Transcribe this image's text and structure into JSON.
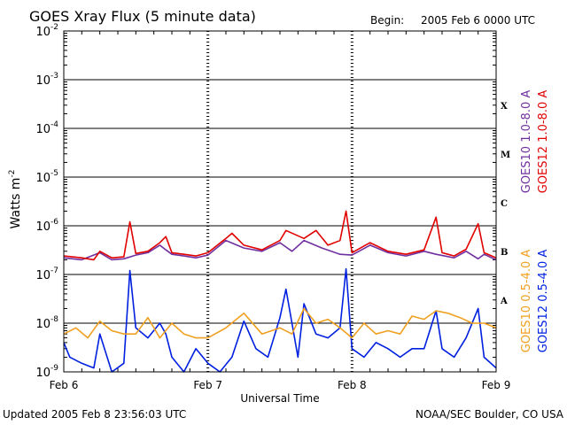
{
  "header": {
    "title": "GOES Xray Flux (5 minute data)",
    "begin_label": "Begin:",
    "begin_value": "2005 Feb 6 0000 UTC"
  },
  "footer": {
    "updated": "Updated 2005 Feb  8 23:56:03 UTC",
    "credit": "NOAA/SEC Boulder, CO USA"
  },
  "colors": {
    "goes10_long": "#7030a0",
    "goes12_long": "#e00000",
    "goes10_short": "#f0a020",
    "goes12_short": "#0020e0"
  },
  "chart_data": {
    "type": "line",
    "title": "GOES Xray Flux (5 minute data)",
    "xlabel": "Universal Time",
    "ylabel": "Watts m",
    "ylabel_sup": "-2",
    "y_scale": "log",
    "ylim": [
      1e-09,
      0.01
    ],
    "xlim": [
      "2005-02-06 00:00",
      "2005-02-09 00:00"
    ],
    "x_ticks": [
      "Feb 6",
      "Feb 7",
      "Feb 8",
      "Feb 9"
    ],
    "y_ticks": [
      {
        "base": "10",
        "exp": "-2",
        "value": 0.01
      },
      {
        "base": "10",
        "exp": "-3",
        "value": 0.001
      },
      {
        "base": "10",
        "exp": "-4",
        "value": 0.0001
      },
      {
        "base": "10",
        "exp": "-5",
        "value": 1e-05
      },
      {
        "base": "10",
        "exp": "-6",
        "value": 1e-06
      },
      {
        "base": "10",
        "exp": "-7",
        "value": 1e-07
      },
      {
        "base": "10",
        "exp": "-8",
        "value": 1e-08
      },
      {
        "base": "10",
        "exp": "-9",
        "value": 1e-09
      }
    ],
    "flare_classes": [
      {
        "label": "X",
        "value": 0.0003
      },
      {
        "label": "M",
        "value": 3e-05
      },
      {
        "label": "C",
        "value": 3e-06
      },
      {
        "label": "B",
        "value": 3e-07
      },
      {
        "label": "A",
        "value": 3e-08
      }
    ],
    "grid": "horizontal",
    "legend_placement": "right",
    "series": [
      {
        "name": "GOES10 1.0-8.0 A",
        "color": "#7030a0",
        "x": [
          "2005-02-06 00:00",
          "2005-02-06 03:00",
          "2005-02-06 06:00",
          "2005-02-06 08:00",
          "2005-02-06 10:00",
          "2005-02-06 12:00",
          "2005-02-06 14:00",
          "2005-02-06 16:00",
          "2005-02-06 17:00",
          "2005-02-06 18:00",
          "2005-02-06 20:00",
          "2005-02-06 22:00",
          "2005-02-07 00:00",
          "2005-02-07 03:00",
          "2005-02-07 06:00",
          "2005-02-07 09:00",
          "2005-02-07 12:00",
          "2005-02-07 14:00",
          "2005-02-07 16:00",
          "2005-02-07 19:00",
          "2005-02-07 22:00",
          "2005-02-08 00:00",
          "2005-02-08 03:00",
          "2005-02-08 06:00",
          "2005-02-08 09:00",
          "2005-02-08 12:00",
          "2005-02-08 14:00",
          "2005-02-08 17:00",
          "2005-02-08 19:00",
          "2005-02-08 21:00",
          "2005-02-08 22:00",
          "2005-02-09 00:00"
        ],
        "y": [
          2.2e-07,
          2e-07,
          2.8e-07,
          2e-07,
          2.1e-07,
          2.5e-07,
          2.8e-07,
          4e-07,
          3.2e-07,
          2.6e-07,
          2.4e-07,
          2.2e-07,
          2.5e-07,
          5e-07,
          3.5e-07,
          3e-07,
          4.5e-07,
          3e-07,
          5e-07,
          3.5e-07,
          2.6e-07,
          2.5e-07,
          4e-07,
          2.8e-07,
          2.4e-07,
          3e-07,
          2.6e-07,
          2.2e-07,
          3e-07,
          2.1e-07,
          2.6e-07,
          2e-07
        ]
      },
      {
        "name": "GOES12 1.0-8.0 A",
        "color": "#e00000",
        "x": [
          "2005-02-06 00:00",
          "2005-02-06 03:00",
          "2005-02-06 05:00",
          "2005-02-06 06:00",
          "2005-02-06 08:00",
          "2005-02-06 10:00",
          "2005-02-06 11:00",
          "2005-02-06 12:00",
          "2005-02-06 14:00",
          "2005-02-06 16:00",
          "2005-02-06 17:00",
          "2005-02-06 18:00",
          "2005-02-06 20:00",
          "2005-02-06 22:00",
          "2005-02-07 00:00",
          "2005-02-07 03:00",
          "2005-02-07 04:00",
          "2005-02-07 06:00",
          "2005-02-07 09:00",
          "2005-02-07 12:00",
          "2005-02-07 13:00",
          "2005-02-07 16:00",
          "2005-02-07 18:00",
          "2005-02-07 20:00",
          "2005-02-07 22:00",
          "2005-02-07 23:00",
          "2005-02-08 00:00",
          "2005-02-08 03:00",
          "2005-02-08 06:00",
          "2005-02-08 09:00",
          "2005-02-08 12:00",
          "2005-02-08 14:00",
          "2005-02-08 15:00",
          "2005-02-08 17:00",
          "2005-02-08 19:00",
          "2005-02-08 21:00",
          "2005-02-08 22:00",
          "2005-02-09 00:00"
        ],
        "y": [
          2.4e-07,
          2.2e-07,
          2e-07,
          3e-07,
          2.2e-07,
          2.3e-07,
          1.2e-06,
          2.7e-07,
          3e-07,
          4.5e-07,
          6e-07,
          2.8e-07,
          2.6e-07,
          2.4e-07,
          2.8e-07,
          5.5e-07,
          7e-07,
          4e-07,
          3.2e-07,
          5e-07,
          8e-07,
          5.5e-07,
          8e-07,
          4e-07,
          5e-07,
          2e-06,
          2.8e-07,
          4.5e-07,
          3e-07,
          2.6e-07,
          3.2e-07,
          1.5e-06,
          2.8e-07,
          2.4e-07,
          3.3e-07,
          1.1e-06,
          2.8e-07,
          2.2e-07
        ]
      },
      {
        "name": "GOES10 0.5-4.0 A",
        "color": "#f0a020",
        "x": [
          "2005-02-06 00:00",
          "2005-02-06 02:00",
          "2005-02-06 04:00",
          "2005-02-06 06:00",
          "2005-02-06 08:00",
          "2005-02-06 10:00",
          "2005-02-06 12:00",
          "2005-02-06 14:00",
          "2005-02-06 16:00",
          "2005-02-06 18:00",
          "2005-02-06 20:00",
          "2005-02-06 22:00",
          "2005-02-07 00:00",
          "2005-02-07 03:00",
          "2005-02-07 06:00",
          "2005-02-07 09:00",
          "2005-02-07 12:00",
          "2005-02-07 14:00",
          "2005-02-07 16:00",
          "2005-02-07 18:00",
          "2005-02-07 20:00",
          "2005-02-07 22:00",
          "2005-02-08 00:00",
          "2005-02-08 02:00",
          "2005-02-08 04:00",
          "2005-02-08 06:00",
          "2005-02-08 08:00",
          "2005-02-08 10:00",
          "2005-02-08 12:00",
          "2005-02-08 14:00",
          "2005-02-08 16:00",
          "2005-02-08 18:00",
          "2005-02-08 20:00",
          "2005-02-08 22:00",
          "2005-02-09 00:00"
        ],
        "y": [
          6e-09,
          8e-09,
          5e-09,
          1.1e-08,
          7e-09,
          6e-09,
          6e-09,
          1.3e-08,
          5e-09,
          1e-08,
          6e-09,
          5e-09,
          5e-09,
          8e-09,
          1.6e-08,
          6e-09,
          8e-09,
          6e-09,
          2e-08,
          1e-08,
          1.2e-08,
          8e-09,
          5e-09,
          1e-08,
          6e-09,
          7e-09,
          6e-09,
          1.4e-08,
          1.2e-08,
          1.8e-08,
          1.6e-08,
          1.3e-08,
          1e-08,
          1e-08,
          8e-09
        ]
      },
      {
        "name": "GOES12 0.5-4.0 A",
        "color": "#0020e0",
        "x": [
          "2005-02-06 00:00",
          "2005-02-06 01:00",
          "2005-02-06 03:00",
          "2005-02-06 05:00",
          "2005-02-06 06:00",
          "2005-02-06 08:00",
          "2005-02-06 10:00",
          "2005-02-06 11:00",
          "2005-02-06 12:00",
          "2005-02-06 14:00",
          "2005-02-06 16:00",
          "2005-02-06 17:00",
          "2005-02-06 18:00",
          "2005-02-06 20:00",
          "2005-02-06 22:00",
          "2005-02-07 00:00",
          "2005-02-07 02:00",
          "2005-02-07 04:00",
          "2005-02-07 06:00",
          "2005-02-07 08:00",
          "2005-02-07 10:00",
          "2005-02-07 12:00",
          "2005-02-07 13:00",
          "2005-02-07 15:00",
          "2005-02-07 16:00",
          "2005-02-07 18:00",
          "2005-02-07 20:00",
          "2005-02-07 22:00",
          "2005-02-07 23:00",
          "2005-02-08 00:00",
          "2005-02-08 02:00",
          "2005-02-08 04:00",
          "2005-02-08 06:00",
          "2005-02-08 08:00",
          "2005-02-08 10:00",
          "2005-02-08 12:00",
          "2005-02-08 14:00",
          "2005-02-08 15:00",
          "2005-02-08 17:00",
          "2005-02-08 19:00",
          "2005-02-08 21:00",
          "2005-02-08 22:00",
          "2005-02-09 00:00"
        ],
        "y": [
          4e-09,
          2e-09,
          1.5e-09,
          1.2e-09,
          6e-09,
          1e-09,
          1.5e-09,
          1.2e-07,
          8e-09,
          5e-09,
          1e-08,
          6e-09,
          2e-09,
          1e-09,
          3e-09,
          1.5e-09,
          1e-09,
          2e-09,
          1.1e-08,
          3e-09,
          2e-09,
          1.3e-08,
          5e-08,
          2e-09,
          2.5e-08,
          6e-09,
          5e-09,
          8e-09,
          1.3e-07,
          3e-09,
          2e-09,
          4e-09,
          3e-09,
          2e-09,
          3e-09,
          3e-09,
          1.8e-08,
          3e-09,
          2e-09,
          5e-09,
          2e-08,
          2e-09,
          1.2e-09
        ]
      }
    ]
  }
}
